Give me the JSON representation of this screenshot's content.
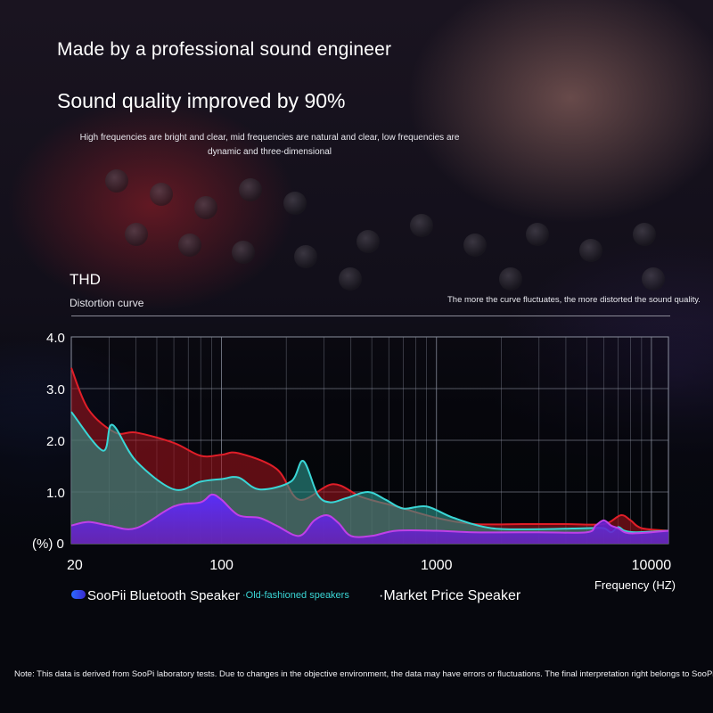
{
  "headline": "Made by a professional sound engineer",
  "subheadline": "Sound quality improved by 90%",
  "description": "High frequencies are bright and clear, mid frequencies are natural and clear, low frequencies are dynamic and three-dimensional",
  "chart_title": "THD",
  "chart_subtitle": "Distortion curve",
  "chart_note": "The more the curve fluctuates, the more distorted the sound quality.",
  "legend": {
    "soopii": "SooPii Bluetooth Speaker",
    "old": "·Old-fashioned speakers",
    "market": "·Market Price Speaker"
  },
  "footnote": "Note: This data is derived from SooPi laboratory tests. Due to changes in the objective environment, the data may have errors or fluctuations. The final interpretation right belongs to SooPi.",
  "colors": {
    "soopii": "#7a2bf0",
    "old": "#3ad6d6",
    "market": "#e01e28",
    "grid": "#8a8f9e"
  },
  "chart_data": {
    "type": "area",
    "title": "THD",
    "subtitle": "Distortion curve",
    "xlabel": "Frequency (HZ)",
    "ylabel": "(%)",
    "x_scale": "log",
    "xlim": [
      20,
      12000
    ],
    "ylim": [
      0,
      4
    ],
    "x_ticks": [
      20,
      100,
      1000,
      10000
    ],
    "x_tick_labels": [
      "20",
      "100",
      "1000",
      "10000"
    ],
    "y_ticks": [
      0,
      1,
      2,
      3,
      4
    ],
    "y_tick_labels": [
      "0",
      "1.0",
      "2.0",
      "3.0",
      "4.0"
    ],
    "zero_label": "(%) 0",
    "grid": true,
    "legend_position": "bottom",
    "series": [
      {
        "name": "Market Price Speaker",
        "color": "#e01e28",
        "x": [
          20,
          24,
          32,
          40,
          60,
          80,
          100,
          120,
          180,
          230,
          330,
          450,
          650,
          1000,
          1500,
          2500,
          4000,
          6000,
          7200,
          8000,
          9000,
          12000
        ],
        "values": [
          3.4,
          2.6,
          2.15,
          2.15,
          1.95,
          1.7,
          1.72,
          1.75,
          1.45,
          0.85,
          1.15,
          0.9,
          0.72,
          0.5,
          0.38,
          0.38,
          0.38,
          0.38,
          0.55,
          0.45,
          0.3,
          0.25
        ]
      },
      {
        "name": "Old-fashioned speakers",
        "color": "#3ad6d6",
        "x": [
          20,
          28,
          31,
          40,
          60,
          80,
          100,
          120,
          150,
          210,
          240,
          280,
          320,
          380,
          480,
          580,
          700,
          900,
          1200,
          1800,
          3000,
          5000,
          6000,
          6500,
          7000,
          7500,
          8500,
          12000
        ],
        "values": [
          2.55,
          1.8,
          2.3,
          1.6,
          1.05,
          1.2,
          1.25,
          1.28,
          1.05,
          1.2,
          1.6,
          0.95,
          0.8,
          0.88,
          1.0,
          0.85,
          0.68,
          0.72,
          0.5,
          0.3,
          0.28,
          0.3,
          0.3,
          0.22,
          0.32,
          0.25,
          0.22,
          0.25
        ]
      },
      {
        "name": "SooPii Bluetooth Speaker",
        "color": "#7a2bf0",
        "x": [
          20,
          24,
          30,
          40,
          60,
          80,
          90,
          100,
          120,
          150,
          180,
          230,
          270,
          310,
          350,
          400,
          500,
          650,
          1000,
          1500,
          3000,
          5000,
          5500,
          6000,
          6500,
          7000,
          8000,
          12000
        ],
        "values": [
          0.35,
          0.42,
          0.35,
          0.3,
          0.72,
          0.8,
          0.95,
          0.85,
          0.55,
          0.5,
          0.35,
          0.15,
          0.45,
          0.55,
          0.4,
          0.15,
          0.15,
          0.25,
          0.25,
          0.22,
          0.22,
          0.22,
          0.35,
          0.45,
          0.35,
          0.3,
          0.2,
          0.25
        ]
      }
    ]
  }
}
